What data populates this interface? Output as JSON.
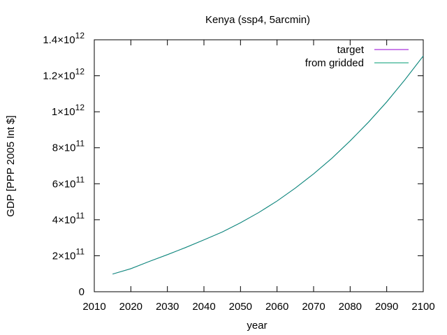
{
  "chart_data": {
    "type": "line",
    "title": "Kenya (ssp4, 5arcmin)",
    "xlabel": "year",
    "ylabel": "GDP [PPP 2005 Int $]",
    "xlim": [
      2010,
      2100
    ],
    "ylim": [
      0,
      1400000000000.0
    ],
    "grid": false,
    "legend_position": "top-right",
    "x_ticks": [
      2010,
      2020,
      2030,
      2040,
      2050,
      2060,
      2070,
      2080,
      2090,
      2100
    ],
    "y_ticks": [
      {
        "value": 0,
        "mantissa": "0",
        "exponent": ""
      },
      {
        "value": 200000000000.0,
        "mantissa": "2×10",
        "exponent": "11"
      },
      {
        "value": 400000000000.0,
        "mantissa": "4×10",
        "exponent": "11"
      },
      {
        "value": 600000000000.0,
        "mantissa": "6×10",
        "exponent": "11"
      },
      {
        "value": 800000000000.0,
        "mantissa": "8×10",
        "exponent": "11"
      },
      {
        "value": 1000000000000.0,
        "mantissa": "1×10",
        "exponent": "12"
      },
      {
        "value": 1200000000000.0,
        "mantissa": "1.2×10",
        "exponent": "12"
      },
      {
        "value": 1400000000000.0,
        "mantissa": "1.4×10",
        "exponent": "12"
      }
    ],
    "x": [
      2015,
      2020,
      2025,
      2030,
      2035,
      2040,
      2045,
      2050,
      2055,
      2060,
      2065,
      2070,
      2075,
      2080,
      2085,
      2090,
      2095,
      2100
    ],
    "series": [
      {
        "name": "target",
        "color": "#9400d3",
        "values": [
          98000000000.0,
          128000000000.0,
          168000000000.0,
          206000000000.0,
          246000000000.0,
          288000000000.0,
          332000000000.0,
          383000000000.0,
          440000000000.0,
          504000000000.0,
          576000000000.0,
          655000000000.0,
          742000000000.0,
          838000000000.0,
          942000000000.0,
          1055000000000.0,
          1178000000000.0,
          1310000000000.0
        ]
      },
      {
        "name": "from gridded",
        "color": "#009e73",
        "values": [
          98000000000.0,
          128000000000.0,
          168000000000.0,
          206000000000.0,
          246000000000.0,
          288000000000.0,
          332000000000.0,
          383000000000.0,
          440000000000.0,
          504000000000.0,
          576000000000.0,
          655000000000.0,
          742000000000.0,
          838000000000.0,
          942000000000.0,
          1055000000000.0,
          1178000000000.0,
          1310000000000.0
        ]
      }
    ]
  }
}
